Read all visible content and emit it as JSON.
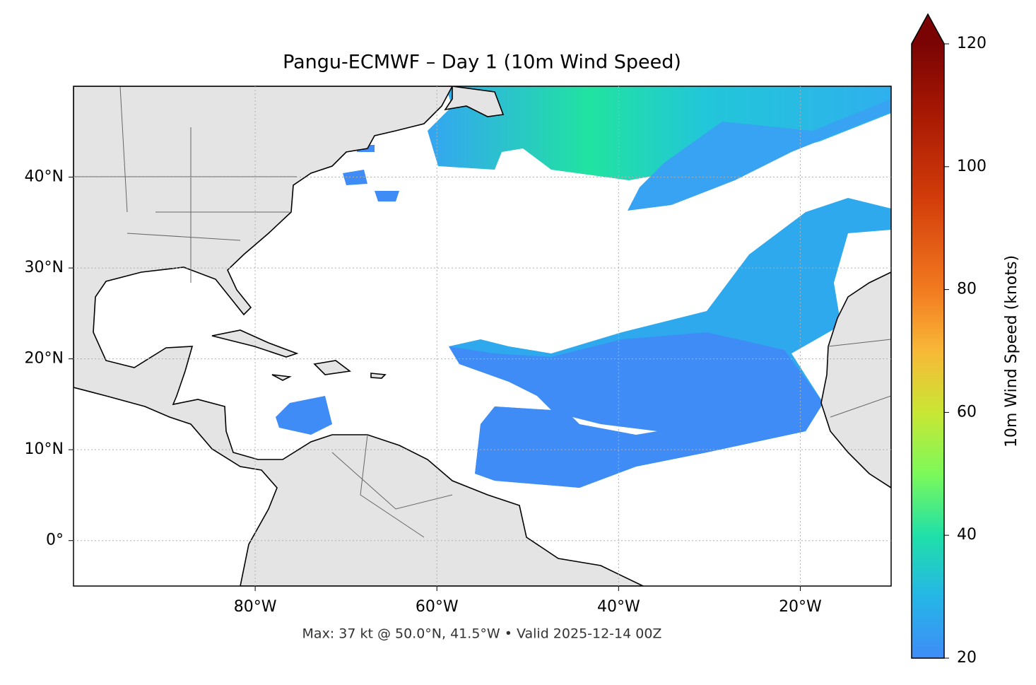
{
  "chart_data": {
    "type": "map",
    "title": "Pangu-ECMWF – Day 1 (10m Wind Speed)",
    "annotation": "Max: 37 kt @ 50.0°N, 41.5°W • Valid 2025-12-14 00Z",
    "xlim": [
      -100,
      -10
    ],
    "ylim": [
      -5,
      50
    ],
    "xticks": [
      {
        "value": -80,
        "label": "80°W"
      },
      {
        "value": -60,
        "label": "60°W"
      },
      {
        "value": -40,
        "label": "40°W"
      },
      {
        "value": -20,
        "label": "20°W"
      }
    ],
    "yticks": [
      {
        "value": 0,
        "label": "0°"
      },
      {
        "value": 10,
        "label": "10°N"
      },
      {
        "value": 20,
        "label": "20°N"
      },
      {
        "value": 30,
        "label": "30°N"
      },
      {
        "value": 40,
        "label": "40°N"
      }
    ],
    "grid": true,
    "colorbar": {
      "label": "10m Wind Speed (knots)",
      "lim": [
        20,
        120
      ],
      "ticks": [
        20,
        40,
        60,
        80,
        100,
        120
      ]
    }
  }
}
